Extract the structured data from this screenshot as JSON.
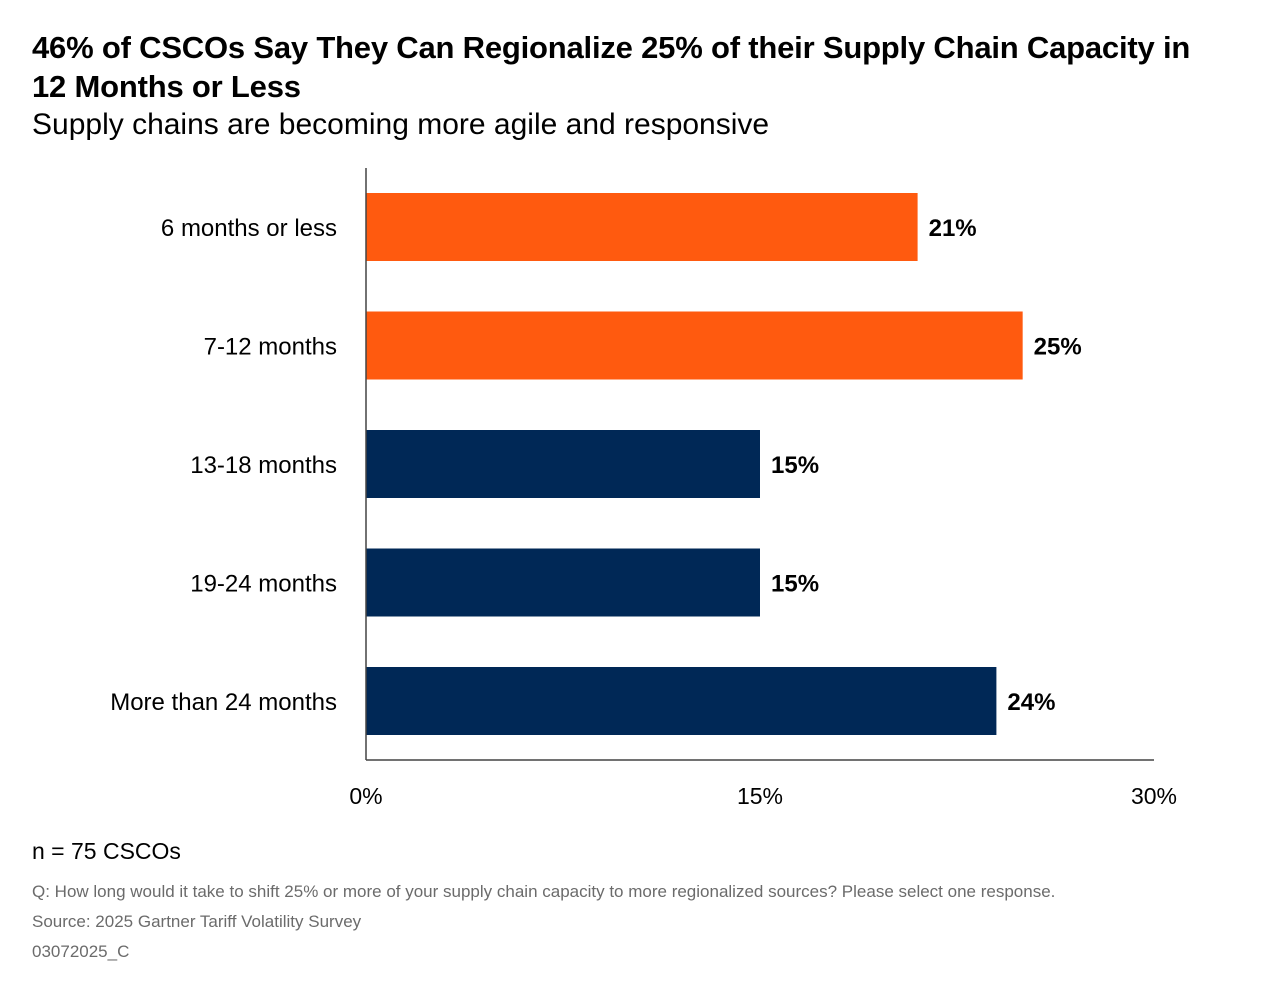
{
  "header": {
    "title": "46% of CSCOs Say They Can Regionalize 25% of their Supply Chain Capacity in 12 Months or Less",
    "subtitle": "Supply chains are becoming more agile and responsive"
  },
  "chart_data": {
    "type": "bar",
    "orientation": "horizontal",
    "title": "46% of CSCOs Say They Can Regionalize 25% of their Supply Chain Capacity in 12 Months or Less",
    "subtitle": "Supply chains are becoming more agile and responsive",
    "categories": [
      "6 months or less",
      "7-12 months",
      "13-18 months",
      "19-24 months",
      "More than 24 months"
    ],
    "values": [
      21,
      25,
      15,
      15,
      24
    ],
    "data_labels": [
      "21%",
      "25%",
      "15%",
      "15%",
      "24%"
    ],
    "bar_colors": [
      "#FF5A0F",
      "#FF5A0F",
      "#002856",
      "#002856",
      "#002856"
    ],
    "xlim": [
      0,
      30
    ],
    "x_ticks": [
      0,
      15,
      30
    ],
    "x_tick_labels": [
      "0%",
      "15%",
      "30%"
    ],
    "grid": false,
    "legend": "none",
    "axis_color": "#444444"
  },
  "footer": {
    "sample": "n = 75 CSCOs",
    "question": "Q: How long would it take to shift 25% or more of your supply chain capacity to more regionalized sources? Please select one response.",
    "source": "Source: 2025 Gartner Tariff Volatility Survey",
    "code": "03072025_C"
  }
}
